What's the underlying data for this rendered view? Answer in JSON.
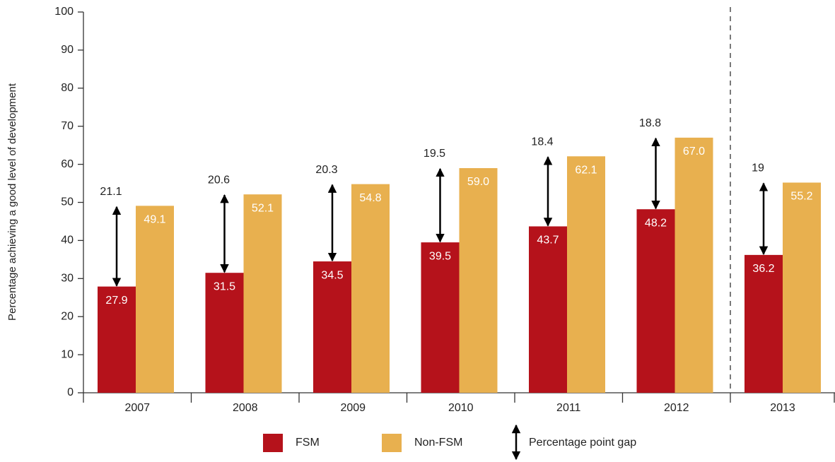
{
  "chart_data": {
    "type": "bar",
    "y_label": "Percentage achieving a good level of development",
    "categories": [
      "2007",
      "2008",
      "2009",
      "2010",
      "2011",
      "2012",
      "2013"
    ],
    "series": [
      {
        "name": "FSM",
        "color": "#b5121b",
        "values": [
          27.9,
          31.5,
          34.5,
          39.5,
          43.7,
          48.2,
          36.2
        ],
        "value_labels": [
          "27.9",
          "31.5",
          "34.5",
          "39.5",
          "43.7",
          "48.2",
          "36.2"
        ]
      },
      {
        "name": "Non-FSM",
        "color": "#e8b04f",
        "values": [
          49.1,
          52.1,
          54.8,
          59.0,
          62.1,
          67.0,
          55.2
        ],
        "value_labels": [
          "49.1",
          "52.1",
          "54.8",
          "59.0",
          "62.1",
          "67.0",
          "55.2"
        ]
      }
    ],
    "gap_series": {
      "name": "Percentage point gap",
      "values": [
        21.1,
        20.6,
        20.3,
        19.5,
        18.4,
        18.8,
        19.0
      ]
    },
    "ylim": [
      0,
      100
    ],
    "yticks": [
      0,
      10,
      20,
      30,
      40,
      50,
      60,
      70,
      80,
      90,
      100
    ]
  }
}
